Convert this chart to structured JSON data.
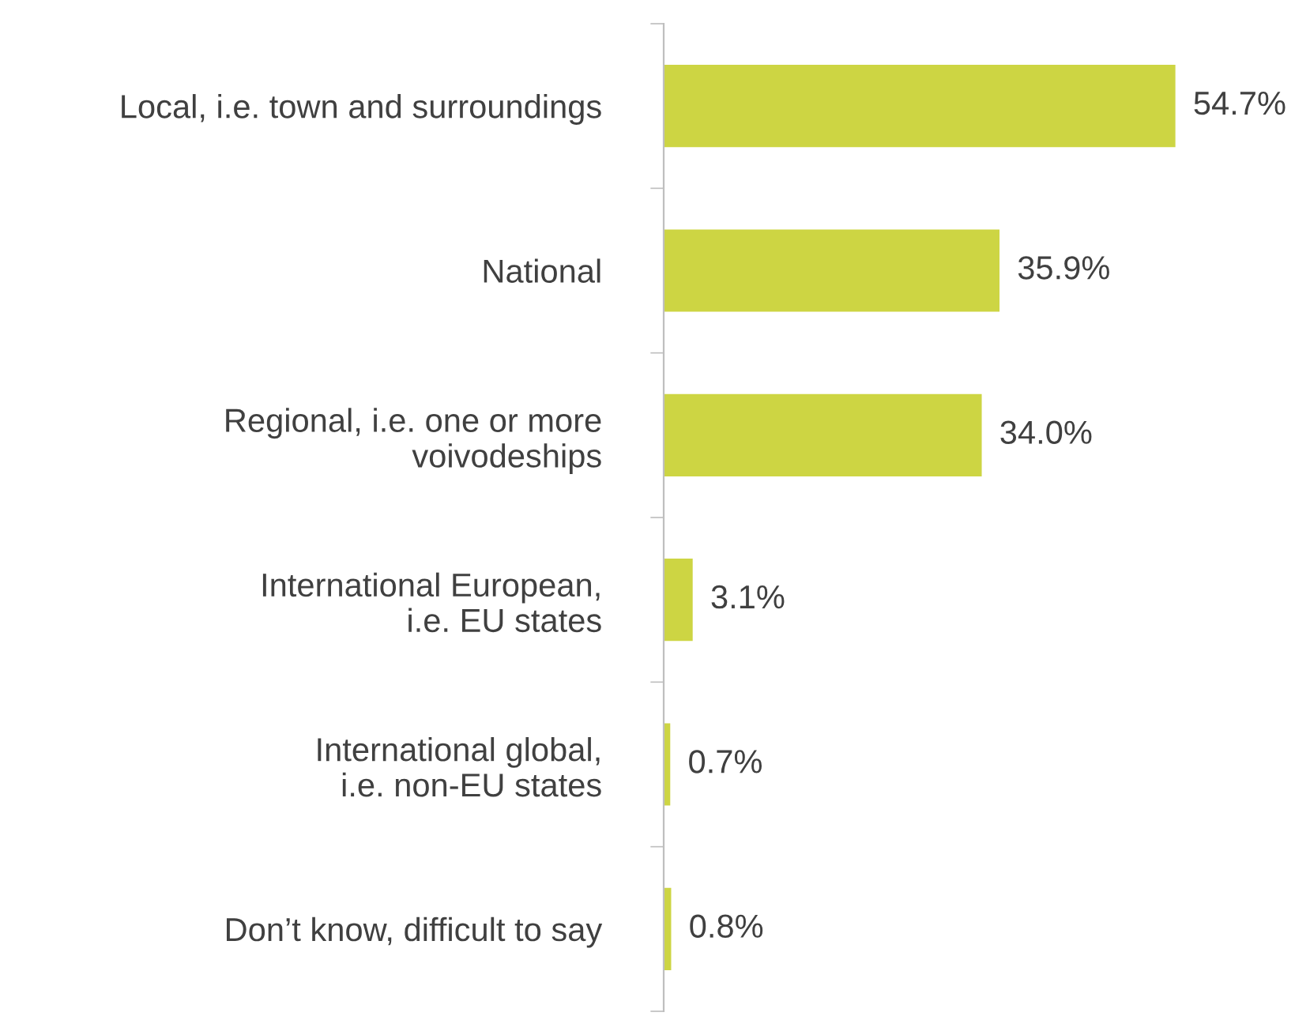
{
  "chart_data": {
    "type": "bar",
    "orientation": "horizontal",
    "categories": [
      "Local, i.e. town and surroundings",
      "National",
      "Regional, i.e. one or more\nvoivodeships",
      "International European,\ni.e. EU states",
      "International global,\ni.e. non-EU states",
      "Don’t know, difficult to say"
    ],
    "values": [
      54.7,
      35.9,
      34.0,
      3.1,
      0.7,
      0.8
    ],
    "value_labels": [
      "54.7%",
      "35.9%",
      "34.0%",
      "3.1%",
      "0.7%",
      "0.8%"
    ],
    "color": "#cdd543",
    "grid": false,
    "legend": false
  }
}
